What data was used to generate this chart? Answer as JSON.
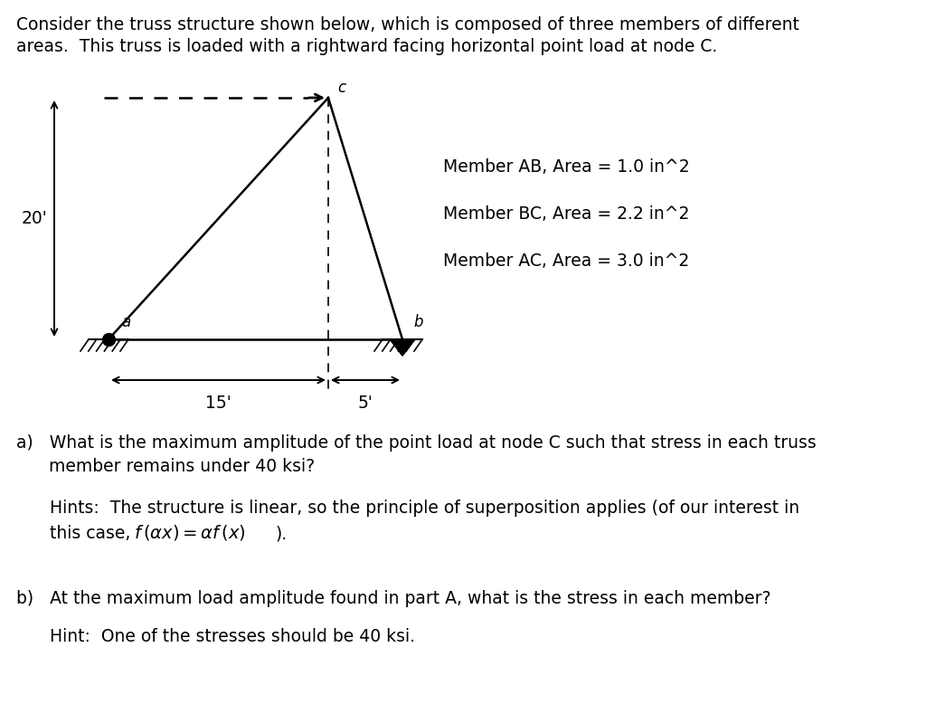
{
  "bg_color": "#ffffff",
  "title_line1": "Consider the truss structure shown below, which is composed of three members of different",
  "title_line2": "areas.  This truss is loaded with a rightward facing horizontal point load at node C.",
  "member_labels": [
    "Member AB, Area = 1.0 in^2",
    "Member BC, Area = 2.2 in^2",
    "Member AC, Area = 3.0 in^2"
  ],
  "dim_20": "20'",
  "dim_15": "15'",
  "dim_5": "5'",
  "node_labels": {
    "a": "a",
    "b": "b",
    "c": "c"
  },
  "qa_line1": "a)   What is the maximum amplitude of the point load at node C such that stress in each truss",
  "qa_line2": "      member remains under 40 ksi?",
  "hint_a_line1": "Hints:  The structure is linear, so the principle of superposition applies (of our interest in",
  "hint_a_line2": "this case,",
  "hint_a_formula": "$f\\,(\\alpha x) = \\alpha f\\,(x)$",
  "hint_a_end": ").",
  "qb_line": "b)   At the maximum load amplitude found in part A, what is the stress in each member?",
  "hint_b_line": "Hint:  One of the stresses should be 40 ksi."
}
